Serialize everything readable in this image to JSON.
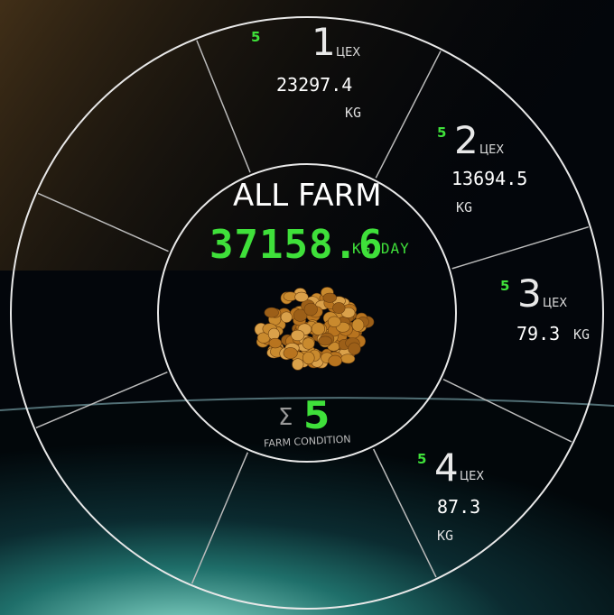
{
  "header": {
    "title": "ALL FARM",
    "total": "37158.6",
    "unit": "KG/DAY"
  },
  "condition": {
    "sigma": "Σ",
    "value": "5",
    "label": "FARM CONDITION"
  },
  "workshops": [
    {
      "status": "5",
      "number": "1",
      "label": "ЦЕХ",
      "value": "23297.4",
      "unit": "KG"
    },
    {
      "status": "5",
      "number": "2",
      "label": "ЦЕХ",
      "value": "13694.5",
      "unit": "KG"
    },
    {
      "status": "5",
      "number": "3",
      "label": "ЦЕХ",
      "value": "79.3",
      "unit": "KG"
    },
    {
      "status": "5",
      "number": "4",
      "label": "ЦЕХ",
      "value": "87.3",
      "unit": "KG"
    }
  ]
}
